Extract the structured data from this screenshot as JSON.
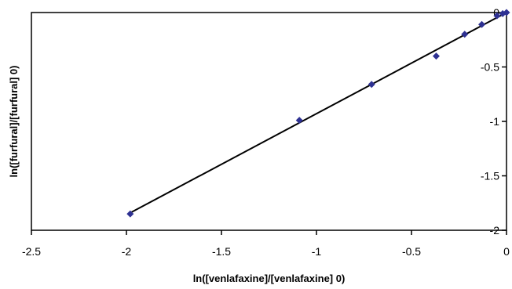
{
  "chart_data": {
    "type": "scatter",
    "title": "",
    "xlabel": "ln([venlafaxine]/[venlafaxine] 0)",
    "ylabel": "ln([furfural]/[furfural] 0)",
    "xlim": [
      -2.5,
      0
    ],
    "ylim": [
      -2,
      0
    ],
    "x_ticks": [
      "-2.5",
      "-2",
      "-1.5",
      "-1",
      "-0.5",
      "0"
    ],
    "y_ticks": [
      "0",
      "-0.5",
      "-1",
      "-1.5",
      "-2"
    ],
    "y_axis_position": "right",
    "grid": false,
    "legend": "none",
    "marker": "diamond",
    "marker_color": "#2e3192",
    "line_color": "#000000",
    "series": [
      {
        "points": [
          {
            "x": 0,
            "y": 0
          },
          {
            "x": -0.02,
            "y": -0.01
          },
          {
            "x": -0.05,
            "y": -0.03
          },
          {
            "x": -0.13,
            "y": -0.11
          },
          {
            "x": -0.22,
            "y": -0.2
          },
          {
            "x": -0.37,
            "y": -0.4
          },
          {
            "x": -0.71,
            "y": -0.66
          },
          {
            "x": -1.09,
            "y": -0.99
          },
          {
            "x": -1.98,
            "y": -1.85
          }
        ],
        "trendline": {
          "x0": -1.98,
          "y0": -1.84,
          "x1": 0,
          "y1": 0
        }
      }
    ]
  }
}
